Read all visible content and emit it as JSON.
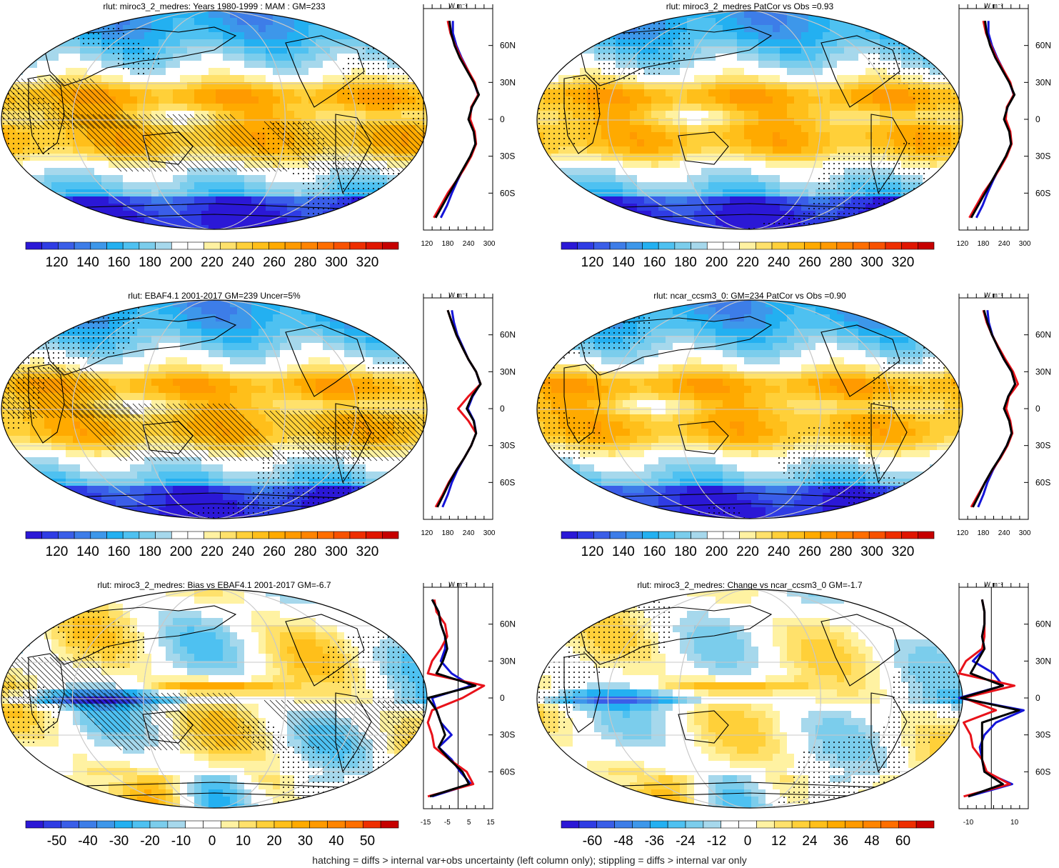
{
  "footer": "hatching = diffs > internal var+obs uncertainty (left column only); stippling = diffs > internal var only",
  "unit_label": "W m⁻²",
  "lat_ticks": [
    "60N",
    "30N",
    "0",
    "30S",
    "60S"
  ],
  "colors": {
    "zonal_model": "#000000",
    "zonal_obs_red": "#e8121a",
    "zonal_obs_blue": "#1414d8",
    "map_outline": "#000000",
    "gridline": "#c8c8c8"
  },
  "chart_data": [
    {
      "type": "heatmap",
      "title": "rlut: miroc3_2_medres: Years 1980-1999 : MAM : GM=233",
      "colorbar_labels": [
        "120",
        "140",
        "160",
        "180",
        "200",
        "220",
        "240",
        "260",
        "280",
        "300",
        "320"
      ],
      "colorbar_range": [
        110,
        330
      ],
      "zonal_x_ticks": [
        "120",
        "180",
        "240",
        "300"
      ],
      "zonal_xlim": [
        110,
        310
      ],
      "hatching": true,
      "stippling": true,
      "zonal_profile": {
        "lat": [
          80,
          70,
          60,
          50,
          40,
          30,
          20,
          10,
          0,
          -10,
          -20,
          -30,
          -40,
          -50,
          -60,
          -70,
          -80
        ],
        "model": [
          185,
          190,
          200,
          215,
          235,
          255,
          270,
          250,
          240,
          255,
          260,
          245,
          225,
          205,
          185,
          165,
          145
        ],
        "obs_red": [
          180,
          188,
          202,
          218,
          238,
          258,
          268,
          248,
          245,
          258,
          262,
          248,
          228,
          205,
          180,
          160,
          140
        ],
        "obs_blue": [
          195,
          195,
          205,
          220,
          238,
          256,
          268,
          250,
          242,
          256,
          260,
          246,
          226,
          208,
          192,
          178,
          160
        ]
      }
    },
    {
      "type": "heatmap",
      "title": "rlut: miroc3_2_medres PatCor vs Obs =0.93",
      "colorbar_labels": [
        "120",
        "140",
        "160",
        "180",
        "200",
        "220",
        "240",
        "260",
        "280",
        "300",
        "320"
      ],
      "colorbar_range": [
        110,
        330
      ],
      "zonal_x_ticks": [
        "120",
        "180",
        "240",
        "300"
      ],
      "zonal_xlim": [
        110,
        310
      ],
      "hatching": false,
      "stippling": true,
      "zonal_profile": {
        "lat": [
          80,
          70,
          60,
          50,
          40,
          30,
          20,
          10,
          0,
          -10,
          -20,
          -30,
          -40,
          -50,
          -60,
          -70,
          -80
        ],
        "model": [
          185,
          190,
          200,
          215,
          235,
          255,
          270,
          250,
          240,
          255,
          260,
          245,
          225,
          205,
          185,
          165,
          145
        ],
        "obs_red": [
          180,
          188,
          202,
          218,
          238,
          258,
          268,
          248,
          245,
          258,
          262,
          248,
          228,
          205,
          180,
          160,
          140
        ],
        "obs_blue": [
          195,
          195,
          205,
          220,
          238,
          256,
          268,
          250,
          242,
          256,
          260,
          246,
          226,
          208,
          192,
          178,
          160
        ]
      }
    },
    {
      "type": "heatmap",
      "title": "rlut: EBAF4.1 2001-2017 GM=239 Uncer=5%",
      "colorbar_labels": [
        "120",
        "140",
        "160",
        "180",
        "200",
        "220",
        "240",
        "260",
        "280",
        "300",
        "320"
      ],
      "colorbar_range": [
        110,
        330
      ],
      "zonal_x_ticks": [
        "120",
        "180",
        "240",
        "300"
      ],
      "zonal_xlim": [
        110,
        310
      ],
      "hatching": true,
      "stippling": true,
      "zonal_profile": {
        "lat": [
          80,
          70,
          60,
          50,
          40,
          30,
          20,
          10,
          0,
          -10,
          -20,
          -30,
          -40,
          -50,
          -60,
          -70,
          -80
        ],
        "model": [
          180,
          192,
          205,
          222,
          240,
          262,
          275,
          250,
          235,
          255,
          262,
          248,
          228,
          205,
          185,
          168,
          150
        ],
        "obs_red": [
          180,
          192,
          205,
          222,
          240,
          262,
          275,
          240,
          210,
          240,
          262,
          248,
          228,
          205,
          183,
          165,
          145
        ],
        "obs_blue": [
          192,
          198,
          208,
          224,
          240,
          262,
          274,
          252,
          238,
          256,
          262,
          248,
          228,
          208,
          192,
          180,
          165
        ]
      }
    },
    {
      "type": "heatmap",
      "title": "rlut: ncar_ccsm3_0: GM=234 PatCor vs Obs =0.90",
      "colorbar_labels": [
        "120",
        "140",
        "160",
        "180",
        "200",
        "220",
        "240",
        "260",
        "280",
        "300",
        "320"
      ],
      "colorbar_range": [
        110,
        330
      ],
      "zonal_x_ticks": [
        "120",
        "180",
        "240",
        "300"
      ],
      "zonal_xlim": [
        110,
        310
      ],
      "hatching": false,
      "stippling": true,
      "zonal_profile": {
        "lat": [
          80,
          70,
          60,
          50,
          40,
          30,
          20,
          10,
          0,
          -10,
          -20,
          -30,
          -40,
          -50,
          -60,
          -70,
          -80
        ],
        "model": [
          182,
          192,
          205,
          222,
          240,
          262,
          272,
          252,
          240,
          255,
          262,
          248,
          228,
          205,
          185,
          168,
          150
        ],
        "obs_red": [
          180,
          190,
          205,
          224,
          244,
          266,
          280,
          254,
          246,
          258,
          264,
          250,
          230,
          206,
          185,
          165,
          145
        ],
        "obs_blue": [
          192,
          196,
          206,
          222,
          240,
          262,
          272,
          252,
          242,
          256,
          262,
          248,
          228,
          208,
          192,
          180,
          165
        ]
      }
    },
    {
      "type": "heatmap",
      "title": "rlut: miroc3_2_medres: Bias vs EBAF4.1 2001-2017 GM=-6.7",
      "colorbar_labels": [
        "-50",
        "-40",
        "-30",
        "-20",
        "-10",
        "0",
        "10",
        "20",
        "30",
        "40",
        "50"
      ],
      "colorbar_range": [
        -55,
        55
      ],
      "zonal_x_ticks": [
        "-15",
        "-5",
        "5",
        "15"
      ],
      "zonal_xlim": [
        -16,
        16
      ],
      "hatching": true,
      "stippling": true,
      "zonal_profile": {
        "lat": [
          80,
          70,
          60,
          50,
          40,
          30,
          20,
          10,
          0,
          -10,
          -20,
          -30,
          -40,
          -50,
          -60,
          -70,
          -80
        ],
        "model": [
          -12,
          -9,
          -8,
          -6,
          -5,
          -7,
          -10,
          8,
          -14,
          -10,
          -8,
          -6,
          -9,
          -4,
          2,
          5,
          -13
        ],
        "obs_red": [
          -11,
          -10,
          -6,
          -5,
          -8,
          -12,
          -14,
          12,
          2,
          -12,
          -14,
          -12,
          -11,
          -4,
          4,
          7,
          -14
        ],
        "obs_blue": [
          -12,
          -9,
          -8,
          -6,
          -6,
          -8,
          -3,
          6,
          -12,
          -10,
          -8,
          -3,
          -9,
          -3,
          1,
          6,
          -12
        ]
      }
    },
    {
      "type": "heatmap",
      "title": "rlut: miroc3_2_medres: Change vs ncar_ccsm3_0 GM=-1.7",
      "colorbar_labels": [
        "-60",
        "-48",
        "-36",
        "-24",
        "-12",
        "0",
        "12",
        "24",
        "36",
        "48",
        "60"
      ],
      "colorbar_range": [
        -66,
        66
      ],
      "zonal_x_ticks": [
        "-10",
        "10"
      ],
      "zonal_xlim": [
        -14,
        16
      ],
      "hatching": false,
      "stippling": true,
      "zonal_profile": {
        "lat": [
          80,
          70,
          60,
          50,
          40,
          30,
          20,
          10,
          0,
          -10,
          -20,
          -30,
          -40,
          -50,
          -60,
          -70,
          -80
        ],
        "model": [
          -4,
          -3,
          -3,
          -4,
          -3,
          -6,
          -9,
          5,
          -13,
          12,
          -4,
          -4,
          -4,
          -4,
          -3,
          5,
          -10
        ],
        "obs_red": [
          -4,
          -3,
          -3,
          -3,
          -4,
          -11,
          -14,
          10,
          -12,
          2,
          -12,
          -9,
          -8,
          -4,
          -2,
          8,
          -12
        ],
        "obs_blue": [
          -4,
          -3,
          -3,
          -4,
          -3,
          -8,
          1,
          5,
          -14,
          14,
          2,
          -3,
          -5,
          -4,
          -3,
          9,
          -10
        ]
      }
    }
  ]
}
